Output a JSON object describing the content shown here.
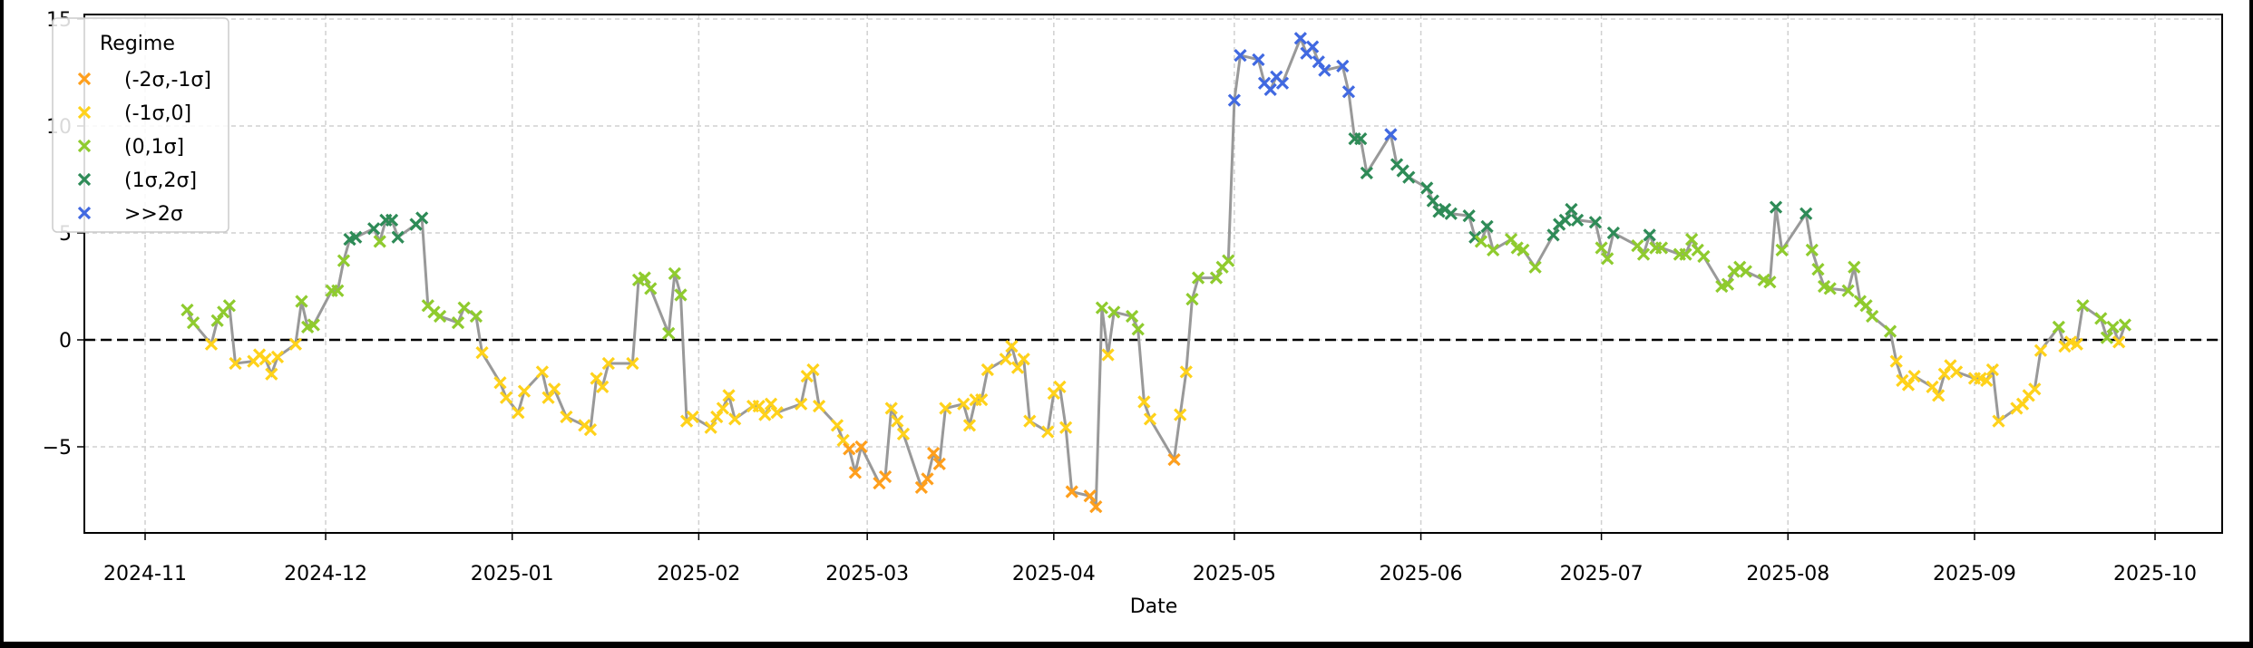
{
  "chart_data": {
    "type": "line",
    "title": "",
    "xlabel": "Date",
    "ylabel": "",
    "ylim": [
      -9,
      15
    ],
    "yticks": [
      -5,
      0,
      5,
      10,
      15
    ],
    "ytick_labels": [
      "−5",
      "0",
      "5",
      "10",
      "15"
    ],
    "xticks": [
      "2024-11",
      "2024-12",
      "2025-01",
      "2025-02",
      "2025-03",
      "2025-04",
      "2025-05",
      "2025-06",
      "2025-07",
      "2025-08",
      "2025-09",
      "2025-10"
    ],
    "grid": true,
    "reference_line": {
      "y": 0,
      "style": "dashed",
      "color": "#000000"
    },
    "line_color": "#999999",
    "legend": {
      "title": "Regime",
      "position": "upper left",
      "entries": [
        {
          "key": "m2",
          "label": "(-2σ,-1σ]",
          "color": "#ff9f1c"
        },
        {
          "key": "m1",
          "label": "(-1σ,0]",
          "color": "#ffd21a"
        },
        {
          "key": "p1",
          "label": "(0,1σ]",
          "color": "#8fcb2e"
        },
        {
          "key": "p2",
          "label": "(1σ,2σ]",
          "color": "#2e8b57"
        },
        {
          "key": "pp",
          "label": ">>2σ",
          "color": "#4169e1"
        }
      ]
    },
    "points": [
      [
        "2024-11-08",
        1.4,
        "p1"
      ],
      [
        "2024-11-09",
        0.8,
        "p1"
      ],
      [
        "2024-11-12",
        -0.2,
        "m1"
      ],
      [
        "2024-11-13",
        0.9,
        "p1"
      ],
      [
        "2024-11-14",
        1.3,
        "p1"
      ],
      [
        "2024-11-15",
        1.6,
        "p1"
      ],
      [
        "2024-11-16",
        -1.1,
        "m1"
      ],
      [
        "2024-11-19",
        -1.0,
        "m1"
      ],
      [
        "2024-11-20",
        -0.7,
        "m1"
      ],
      [
        "2024-11-21",
        -0.9,
        "m1"
      ],
      [
        "2024-11-22",
        -1.6,
        "m1"
      ],
      [
        "2024-11-23",
        -0.8,
        "m1"
      ],
      [
        "2024-11-26",
        -0.2,
        "m1"
      ],
      [
        "2024-11-27",
        1.8,
        "p1"
      ],
      [
        "2024-11-28",
        0.6,
        "p1"
      ],
      [
        "2024-11-29",
        0.7,
        "p1"
      ],
      [
        "2024-12-02",
        2.3,
        "p1"
      ],
      [
        "2024-12-03",
        2.3,
        "p1"
      ],
      [
        "2024-12-04",
        3.7,
        "p1"
      ],
      [
        "2024-12-05",
        4.7,
        "p2"
      ],
      [
        "2024-12-06",
        4.8,
        "p2"
      ],
      [
        "2024-12-09",
        5.2,
        "p2"
      ],
      [
        "2024-12-10",
        4.6,
        "p1"
      ],
      [
        "2024-12-11",
        5.6,
        "p2"
      ],
      [
        "2024-12-12",
        5.6,
        "p2"
      ],
      [
        "2024-12-13",
        4.8,
        "p2"
      ],
      [
        "2024-12-16",
        5.4,
        "p2"
      ],
      [
        "2024-12-17",
        5.7,
        "p2"
      ],
      [
        "2024-12-18",
        1.6,
        "p1"
      ],
      [
        "2024-12-19",
        1.3,
        "p1"
      ],
      [
        "2024-12-20",
        1.1,
        "p1"
      ],
      [
        "2024-12-23",
        0.8,
        "p1"
      ],
      [
        "2024-12-24",
        1.5,
        "p1"
      ],
      [
        "2024-12-26",
        1.1,
        "p1"
      ],
      [
        "2024-12-27",
        -0.6,
        "m1"
      ],
      [
        "2024-12-30",
        -2.0,
        "m1"
      ],
      [
        "2024-12-31",
        -2.7,
        "m1"
      ],
      [
        "2025-01-02",
        -3.4,
        "m1"
      ],
      [
        "2025-01-03",
        -2.4,
        "m1"
      ],
      [
        "2025-01-06",
        -1.5,
        "m1"
      ],
      [
        "2025-01-07",
        -2.7,
        "m1"
      ],
      [
        "2025-01-08",
        -2.3,
        "m1"
      ],
      [
        "2025-01-10",
        -3.6,
        "m1"
      ],
      [
        "2025-01-13",
        -4.0,
        "m1"
      ],
      [
        "2025-01-14",
        -4.2,
        "m1"
      ],
      [
        "2025-01-15",
        -1.8,
        "m1"
      ],
      [
        "2025-01-16",
        -2.2,
        "m1"
      ],
      [
        "2025-01-17",
        -1.1,
        "m1"
      ],
      [
        "2025-01-21",
        -1.1,
        "m1"
      ],
      [
        "2025-01-22",
        2.8,
        "p1"
      ],
      [
        "2025-01-23",
        2.9,
        "p1"
      ],
      [
        "2025-01-24",
        2.4,
        "p1"
      ],
      [
        "2025-01-27",
        0.3,
        "p1"
      ],
      [
        "2025-01-28",
        3.1,
        "p1"
      ],
      [
        "2025-01-29",
        2.1,
        "p1"
      ],
      [
        "2025-01-30",
        -3.8,
        "m1"
      ],
      [
        "2025-01-31",
        -3.6,
        "m1"
      ],
      [
        "2025-02-03",
        -4.1,
        "m1"
      ],
      [
        "2025-02-04",
        -3.6,
        "m1"
      ],
      [
        "2025-02-05",
        -3.2,
        "m1"
      ],
      [
        "2025-02-06",
        -2.6,
        "m1"
      ],
      [
        "2025-02-07",
        -3.7,
        "m1"
      ],
      [
        "2025-02-10",
        -3.1,
        "m1"
      ],
      [
        "2025-02-11",
        -3.1,
        "m1"
      ],
      [
        "2025-02-12",
        -3.5,
        "m1"
      ],
      [
        "2025-02-13",
        -3.0,
        "m1"
      ],
      [
        "2025-02-14",
        -3.4,
        "m1"
      ],
      [
        "2025-02-18",
        -3.0,
        "m1"
      ],
      [
        "2025-02-19",
        -1.7,
        "m1"
      ],
      [
        "2025-02-20",
        -1.4,
        "m1"
      ],
      [
        "2025-02-21",
        -3.1,
        "m1"
      ],
      [
        "2025-02-24",
        -4.0,
        "m1"
      ],
      [
        "2025-02-25",
        -4.7,
        "m1"
      ],
      [
        "2025-02-26",
        -5.1,
        "m2"
      ],
      [
        "2025-02-27",
        -6.2,
        "m2"
      ],
      [
        "2025-02-28",
        -5.0,
        "m2"
      ],
      [
        "2025-03-03",
        -6.7,
        "m2"
      ],
      [
        "2025-03-04",
        -6.4,
        "m2"
      ],
      [
        "2025-03-05",
        -3.2,
        "m1"
      ],
      [
        "2025-03-06",
        -3.8,
        "m1"
      ],
      [
        "2025-03-07",
        -4.4,
        "m1"
      ],
      [
        "2025-03-10",
        -6.9,
        "m2"
      ],
      [
        "2025-03-11",
        -6.5,
        "m2"
      ],
      [
        "2025-03-12",
        -5.3,
        "m2"
      ],
      [
        "2025-03-13",
        -5.8,
        "m2"
      ],
      [
        "2025-03-14",
        -3.2,
        "m1"
      ],
      [
        "2025-03-17",
        -3.0,
        "m1"
      ],
      [
        "2025-03-18",
        -4.0,
        "m1"
      ],
      [
        "2025-03-19",
        -2.8,
        "m1"
      ],
      [
        "2025-03-20",
        -2.8,
        "m1"
      ],
      [
        "2025-03-21",
        -1.4,
        "m1"
      ],
      [
        "2025-03-24",
        -0.9,
        "m1"
      ],
      [
        "2025-03-25",
        -0.3,
        "m1"
      ],
      [
        "2025-03-26",
        -1.3,
        "m1"
      ],
      [
        "2025-03-27",
        -0.9,
        "m1"
      ],
      [
        "2025-03-28",
        -3.8,
        "m1"
      ],
      [
        "2025-03-31",
        -4.3,
        "m1"
      ],
      [
        "2025-04-01",
        -2.5,
        "m1"
      ],
      [
        "2025-04-02",
        -2.2,
        "m1"
      ],
      [
        "2025-04-03",
        -4.1,
        "m1"
      ],
      [
        "2025-04-04",
        -7.1,
        "m2"
      ],
      [
        "2025-04-07",
        -7.3,
        "m2"
      ],
      [
        "2025-04-08",
        -7.8,
        "m2"
      ],
      [
        "2025-04-09",
        1.5,
        "p1"
      ],
      [
        "2025-04-10",
        -0.7,
        "m1"
      ],
      [
        "2025-04-11",
        1.3,
        "p1"
      ],
      [
        "2025-04-14",
        1.1,
        "p1"
      ],
      [
        "2025-04-15",
        0.5,
        "p1"
      ],
      [
        "2025-04-16",
        -2.9,
        "m1"
      ],
      [
        "2025-04-17",
        -3.7,
        "m1"
      ],
      [
        "2025-04-21",
        -5.6,
        "m2"
      ],
      [
        "2025-04-22",
        -3.5,
        "m1"
      ],
      [
        "2025-04-23",
        -1.5,
        "m1"
      ],
      [
        "2025-04-24",
        1.9,
        "p1"
      ],
      [
        "2025-04-25",
        2.9,
        "p1"
      ],
      [
        "2025-04-28",
        2.9,
        "p1"
      ],
      [
        "2025-04-29",
        3.4,
        "p1"
      ],
      [
        "2025-04-30",
        3.7,
        "p1"
      ],
      [
        "2025-05-01",
        11.2,
        "pp"
      ],
      [
        "2025-05-02",
        13.3,
        "pp"
      ],
      [
        "2025-05-05",
        13.1,
        "pp"
      ],
      [
        "2025-05-06",
        12.0,
        "pp"
      ],
      [
        "2025-05-07",
        11.7,
        "pp"
      ],
      [
        "2025-05-08",
        12.3,
        "pp"
      ],
      [
        "2025-05-09",
        12.0,
        "pp"
      ],
      [
        "2025-05-12",
        14.1,
        "pp"
      ],
      [
        "2025-05-13",
        13.4,
        "pp"
      ],
      [
        "2025-05-14",
        13.7,
        "pp"
      ],
      [
        "2025-05-15",
        13.0,
        "pp"
      ],
      [
        "2025-05-16",
        12.6,
        "pp"
      ],
      [
        "2025-05-19",
        12.8,
        "pp"
      ],
      [
        "2025-05-20",
        11.6,
        "pp"
      ],
      [
        "2025-05-21",
        9.4,
        "p2"
      ],
      [
        "2025-05-22",
        9.4,
        "p2"
      ],
      [
        "2025-05-23",
        7.8,
        "p2"
      ],
      [
        "2025-05-27",
        9.6,
        "pp"
      ],
      [
        "2025-05-28",
        8.2,
        "p2"
      ],
      [
        "2025-05-29",
        7.9,
        "p2"
      ],
      [
        "2025-05-30",
        7.6,
        "p2"
      ],
      [
        "2025-06-02",
        7.1,
        "p2"
      ],
      [
        "2025-06-03",
        6.5,
        "p2"
      ],
      [
        "2025-06-04",
        6.0,
        "p2"
      ],
      [
        "2025-06-05",
        6.1,
        "p2"
      ],
      [
        "2025-06-06",
        5.9,
        "p2"
      ],
      [
        "2025-06-09",
        5.8,
        "p2"
      ],
      [
        "2025-06-10",
        4.8,
        "p2"
      ],
      [
        "2025-06-11",
        4.6,
        "p1"
      ],
      [
        "2025-06-12",
        5.3,
        "p2"
      ],
      [
        "2025-06-13",
        4.2,
        "p1"
      ],
      [
        "2025-06-16",
        4.7,
        "p1"
      ],
      [
        "2025-06-17",
        4.3,
        "p1"
      ],
      [
        "2025-06-18",
        4.2,
        "p1"
      ],
      [
        "2025-06-20",
        3.4,
        "p1"
      ],
      [
        "2025-06-23",
        4.9,
        "p2"
      ],
      [
        "2025-06-24",
        5.4,
        "p2"
      ],
      [
        "2025-06-25",
        5.6,
        "p2"
      ],
      [
        "2025-06-26",
        6.1,
        "p2"
      ],
      [
        "2025-06-27",
        5.6,
        "p2"
      ],
      [
        "2025-06-30",
        5.5,
        "p2"
      ],
      [
        "2025-07-01",
        4.3,
        "p1"
      ],
      [
        "2025-07-02",
        3.8,
        "p1"
      ],
      [
        "2025-07-03",
        5.0,
        "p2"
      ],
      [
        "2025-07-07",
        4.4,
        "p1"
      ],
      [
        "2025-07-08",
        4.0,
        "p1"
      ],
      [
        "2025-07-09",
        4.9,
        "p2"
      ],
      [
        "2025-07-10",
        4.3,
        "p1"
      ],
      [
        "2025-07-11",
        4.3,
        "p1"
      ],
      [
        "2025-07-14",
        4.0,
        "p1"
      ],
      [
        "2025-07-15",
        4.0,
        "p1"
      ],
      [
        "2025-07-16",
        4.7,
        "p1"
      ],
      [
        "2025-07-17",
        4.2,
        "p1"
      ],
      [
        "2025-07-18",
        3.9,
        "p1"
      ],
      [
        "2025-07-21",
        2.5,
        "p1"
      ],
      [
        "2025-07-22",
        2.6,
        "p1"
      ],
      [
        "2025-07-23",
        3.2,
        "p1"
      ],
      [
        "2025-07-24",
        3.4,
        "p1"
      ],
      [
        "2025-07-25",
        3.2,
        "p1"
      ],
      [
        "2025-07-28",
        2.8,
        "p1"
      ],
      [
        "2025-07-29",
        2.7,
        "p1"
      ],
      [
        "2025-07-30",
        6.2,
        "p2"
      ],
      [
        "2025-07-31",
        4.2,
        "p1"
      ],
      [
        "2025-08-04",
        5.9,
        "p2"
      ],
      [
        "2025-08-05",
        4.2,
        "p1"
      ],
      [
        "2025-08-06",
        3.3,
        "p1"
      ],
      [
        "2025-08-07",
        2.5,
        "p1"
      ],
      [
        "2025-08-08",
        2.4,
        "p1"
      ],
      [
        "2025-08-11",
        2.3,
        "p1"
      ],
      [
        "2025-08-12",
        3.4,
        "p1"
      ],
      [
        "2025-08-13",
        1.8,
        "p1"
      ],
      [
        "2025-08-14",
        1.6,
        "p1"
      ],
      [
        "2025-08-15",
        1.1,
        "p1"
      ],
      [
        "2025-08-18",
        0.4,
        "p1"
      ],
      [
        "2025-08-19",
        -1.0,
        "m1"
      ],
      [
        "2025-08-20",
        -1.9,
        "m1"
      ],
      [
        "2025-08-21",
        -2.1,
        "m1"
      ],
      [
        "2025-08-22",
        -1.7,
        "m1"
      ],
      [
        "2025-08-25",
        -2.2,
        "m1"
      ],
      [
        "2025-08-26",
        -2.6,
        "m1"
      ],
      [
        "2025-08-27",
        -1.6,
        "m1"
      ],
      [
        "2025-08-28",
        -1.2,
        "m1"
      ],
      [
        "2025-08-29",
        -1.5,
        "m1"
      ],
      [
        "2025-09-01",
        -1.8,
        "m1"
      ],
      [
        "2025-09-02",
        -1.8,
        "m1"
      ],
      [
        "2025-09-03",
        -1.9,
        "m1"
      ],
      [
        "2025-09-04",
        -1.4,
        "m1"
      ],
      [
        "2025-09-05",
        -3.8,
        "m1"
      ],
      [
        "2025-09-08",
        -3.2,
        "m1"
      ],
      [
        "2025-09-09",
        -3.0,
        "m1"
      ],
      [
        "2025-09-10",
        -2.6,
        "m1"
      ],
      [
        "2025-09-11",
        -2.3,
        "m1"
      ],
      [
        "2025-09-12",
        -0.5,
        "m1"
      ],
      [
        "2025-09-15",
        0.6,
        "p1"
      ],
      [
        "2025-09-16",
        -0.3,
        "m1"
      ],
      [
        "2025-09-17",
        -0.1,
        "m1"
      ],
      [
        "2025-09-18",
        -0.2,
        "m1"
      ],
      [
        "2025-09-19",
        1.6,
        "p1"
      ],
      [
        "2025-09-22",
        1.0,
        "p1"
      ],
      [
        "2025-09-23",
        0.1,
        "p1"
      ],
      [
        "2025-09-24",
        0.6,
        "p1"
      ],
      [
        "2025-09-25",
        -0.1,
        "m1"
      ],
      [
        "2025-09-26",
        0.7,
        "p1"
      ]
    ]
  },
  "axes": {
    "xlabel": "Date",
    "ytick_labels": [
      "15",
      "10",
      "5",
      "0",
      "−5"
    ],
    "xtick_labels": [
      "2024-11",
      "2024-12",
      "2025-01",
      "2025-02",
      "2025-03",
      "2025-04",
      "2025-05",
      "2025-06",
      "2025-07",
      "2025-08",
      "2025-09",
      "2025-10"
    ]
  },
  "legend": {
    "title": "Regime",
    "labels": [
      "(-2σ,-1σ]",
      "(-1σ,0]",
      "(0,1σ]",
      "(1σ,2σ]",
      ">>2σ"
    ]
  }
}
